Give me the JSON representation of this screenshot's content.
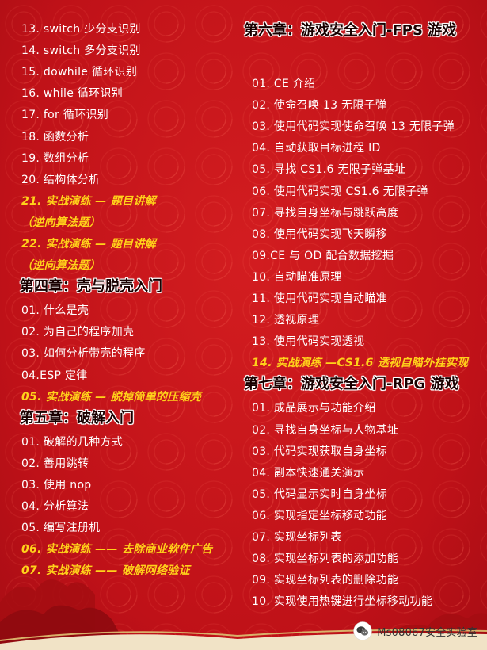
{
  "left_column": [
    {
      "kind": "item",
      "text": "13. switch 少分支识别"
    },
    {
      "kind": "item",
      "text": "14. switch 多分支识别"
    },
    {
      "kind": "item",
      "text": "15. dowhile 循环识别"
    },
    {
      "kind": "item",
      "text": "16. while 循环识别"
    },
    {
      "kind": "item",
      "text": "17. for 循环识别"
    },
    {
      "kind": "item",
      "text": "18. 函数分析"
    },
    {
      "kind": "item",
      "text": "19. 数组分析"
    },
    {
      "kind": "item",
      "text": "20. 结构体分析"
    },
    {
      "kind": "highlight",
      "text": "21. 实战演练 — 题目讲解"
    },
    {
      "kind": "highlight",
      "text": "（逆向算法题）"
    },
    {
      "kind": "highlight",
      "text": "22. 实战演练 — 题目讲解"
    },
    {
      "kind": "highlight",
      "text": "（逆向算法题）"
    },
    {
      "kind": "heading",
      "text": "第四章：壳与脱壳入门"
    },
    {
      "kind": "item",
      "text": "01. 什么是壳"
    },
    {
      "kind": "item",
      "text": "02. 为自己的程序加壳"
    },
    {
      "kind": "item",
      "text": "03. 如何分析带壳的程序"
    },
    {
      "kind": "item",
      "text": "04.ESP 定律"
    },
    {
      "kind": "highlight",
      "text": "05. 实战演练 — 脱掉简单的压缩壳"
    },
    {
      "kind": "heading",
      "text": "第五章：破解入门"
    },
    {
      "kind": "item",
      "text": "01. 破解的几种方式"
    },
    {
      "kind": "item",
      "text": "02. 善用跳转"
    },
    {
      "kind": "item",
      "text": "03. 使用 nop"
    },
    {
      "kind": "item",
      "text": "04. 分析算法"
    },
    {
      "kind": "item",
      "text": "05. 编写注册机"
    },
    {
      "kind": "highlight",
      "text": "06. 实战演练 —— 去除商业软件广告"
    },
    {
      "kind": "highlight",
      "text": "07. 实战演练 —— 破解网络验证"
    }
  ],
  "right_column": [
    {
      "kind": "heading",
      "text": "第六章：游戏安全入门-FPS 游戏"
    },
    {
      "kind": "item",
      "text": "01. CE 介绍"
    },
    {
      "kind": "item",
      "text": "02. 使命召唤 13 无限子弹"
    },
    {
      "kind": "item",
      "text": "03. 使用代码实现使命召唤 13 无限子弹"
    },
    {
      "kind": "item",
      "text": "04. 自动获取目标进程 ID"
    },
    {
      "kind": "item",
      "text": "05. 寻找 CS1.6 无限子弹基址"
    },
    {
      "kind": "item",
      "text": "06. 使用代码实现 CS1.6 无限子弹"
    },
    {
      "kind": "item",
      "text": "07. 寻找自身坐标与跳跃高度"
    },
    {
      "kind": "item",
      "text": "08. 使用代码实现飞天瞬移"
    },
    {
      "kind": "item",
      "text": "09.CE 与 OD 配合数据挖掘"
    },
    {
      "kind": "item",
      "text": "10. 自动瞄准原理"
    },
    {
      "kind": "item",
      "text": "11. 使用代码实现自动瞄准"
    },
    {
      "kind": "item",
      "text": "12. 透视原理"
    },
    {
      "kind": "item",
      "text": "13. 使用代码实现透视"
    },
    {
      "kind": "highlight",
      "text": "14. 实战演练 —CS1.6 透视自瞄外挂实现"
    },
    {
      "kind": "heading",
      "text": "第七章：游戏安全入门-RPG 游戏"
    },
    {
      "kind": "item",
      "text": "01. 成品展示与功能介绍"
    },
    {
      "kind": "item",
      "text": "02. 寻找自身坐标与人物基址"
    },
    {
      "kind": "item",
      "text": "03. 代码实现获取自身坐标"
    },
    {
      "kind": "item",
      "text": "04. 副本快速通关演示"
    },
    {
      "kind": "item",
      "text": "05. 代码显示实时自身坐标"
    },
    {
      "kind": "item",
      "text": "06. 实现指定坐标移动功能"
    },
    {
      "kind": "item",
      "text": "07. 实现坐标列表"
    },
    {
      "kind": "item",
      "text": "08. 实现坐标列表的添加功能"
    },
    {
      "kind": "item",
      "text": "09. 实现坐标列表的删除功能"
    },
    {
      "kind": "item",
      "text": "10. 实现使用热键进行坐标移动功能"
    }
  ],
  "watermark": {
    "text": "Ms08067安全实验室",
    "icon": "wechat-icon"
  },
  "colors": {
    "background": "#c8141a",
    "text": "#ffffff",
    "highlight": "#ffd21a",
    "heading": "#1a0000"
  }
}
